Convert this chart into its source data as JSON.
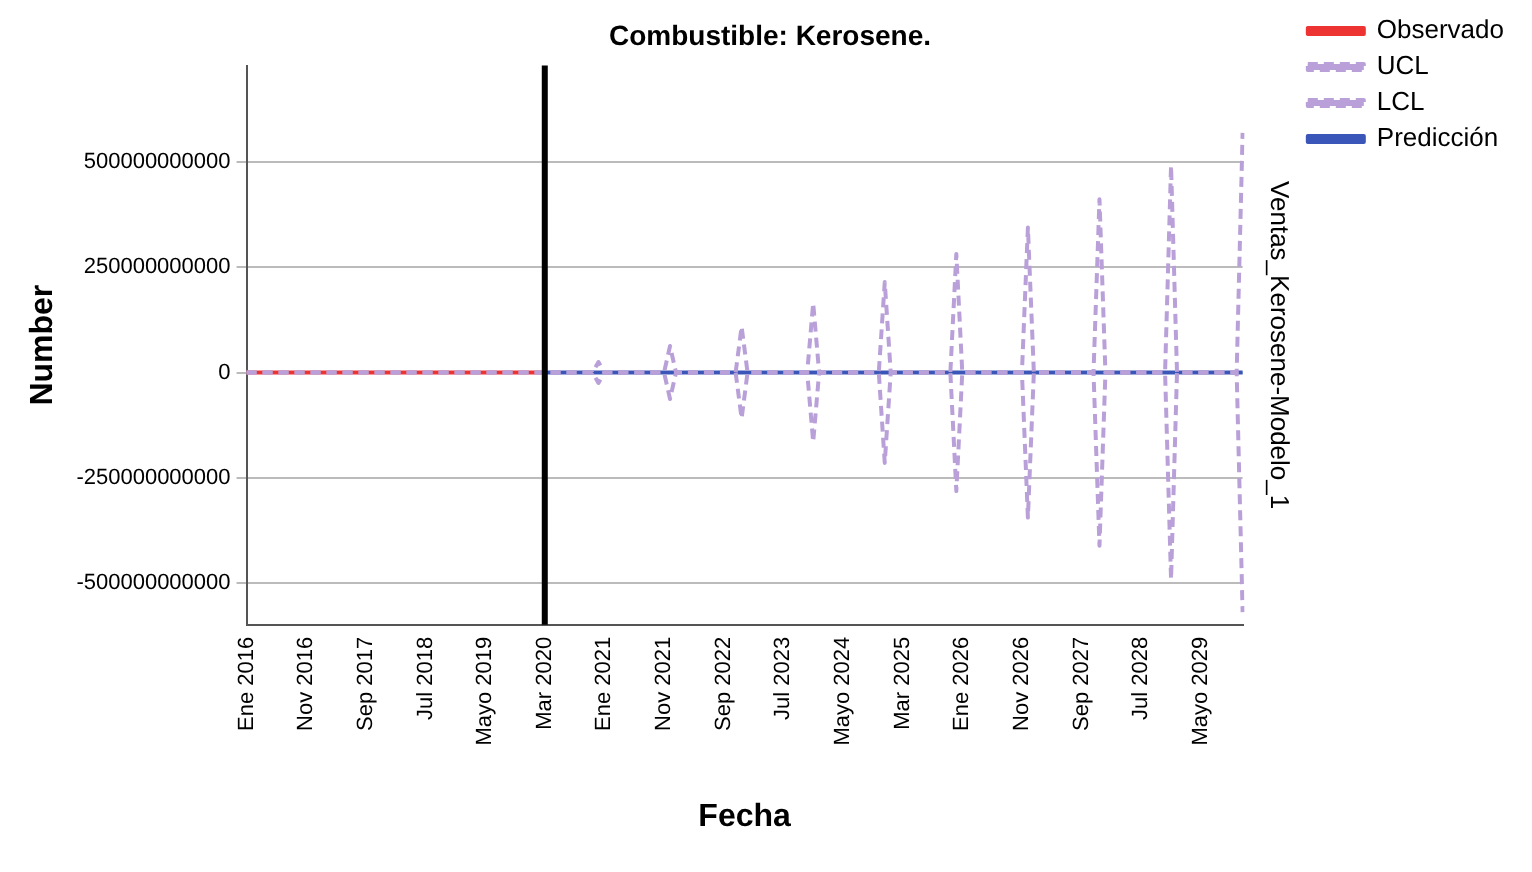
{
  "chart_data": {
    "type": "line",
    "title": "Combustible: Kerosene.",
    "xlabel": "Fecha",
    "ylabel": "Number",
    "annotations": [
      "Ventas_Kerosene-Modelo_1"
    ],
    "categories": [
      "Ene 2016",
      null,
      null,
      null,
      null,
      null,
      null,
      null,
      null,
      null,
      "Nov 2016",
      null,
      null,
      null,
      null,
      null,
      null,
      null,
      null,
      null,
      "Sep 2017",
      null,
      null,
      null,
      null,
      null,
      null,
      null,
      null,
      null,
      "Jul 2018",
      null,
      null,
      null,
      null,
      null,
      null,
      null,
      null,
      null,
      "Mayo 2019",
      null,
      null,
      null,
      null,
      null,
      null,
      null,
      null,
      null,
      "Mar 2020",
      null,
      null,
      null,
      null,
      null,
      null,
      null,
      null,
      null,
      "Ene 2021",
      null,
      null,
      null,
      null,
      null,
      null,
      null,
      null,
      null,
      "Nov 2021",
      null,
      null,
      null,
      null,
      null,
      null,
      null,
      null,
      null,
      "Sep 2022",
      null,
      null,
      null,
      null,
      null,
      null,
      null,
      null,
      null,
      "Jul 2023",
      null,
      null,
      null,
      null,
      null,
      null,
      null,
      null,
      null,
      "Mayo 2024",
      null,
      null,
      null,
      null,
      null,
      null,
      null,
      null,
      null,
      "Mar 2025",
      null,
      null,
      null,
      null,
      null,
      null,
      null,
      null,
      null,
      "Ene 2026",
      null,
      null,
      null,
      null,
      null,
      null,
      null,
      null,
      null,
      "Nov 2026",
      null,
      null,
      null,
      null,
      null,
      null,
      null,
      null,
      null,
      "Sep 2027",
      null,
      null,
      null,
      null,
      null,
      null,
      null,
      null,
      null,
      "Jul 2028",
      null,
      null,
      null,
      null,
      null,
      null,
      null,
      null,
      null,
      "Mayo 2029",
      null,
      null,
      null,
      null,
      null,
      null,
      null
    ],
    "series": [
      {
        "name": "Observado",
        "color": "#ee3333",
        "line_style": "solid",
        "values": [
          0,
          0,
          0,
          0,
          0,
          0,
          0,
          0,
          0,
          0,
          0,
          0,
          0,
          0,
          0,
          0,
          0,
          0,
          0,
          0,
          0,
          0,
          0,
          0,
          0,
          0,
          0,
          0,
          0,
          0,
          0,
          0,
          0,
          0,
          0,
          0,
          0,
          0,
          0,
          0,
          0,
          0,
          0,
          0,
          0,
          0,
          0,
          0,
          0,
          0,
          0,
          null,
          null,
          null,
          null,
          null,
          null,
          null,
          null,
          null,
          null,
          null,
          null,
          null,
          null,
          null,
          null,
          null,
          null,
          null,
          null,
          null,
          null,
          null,
          null,
          null,
          null,
          null,
          null,
          null,
          null,
          null,
          null,
          null,
          null,
          null,
          null,
          null,
          null,
          null,
          null,
          null,
          null,
          null,
          null,
          null,
          null,
          null,
          null,
          null,
          null,
          null,
          null,
          null,
          null,
          null,
          null,
          null,
          null,
          null,
          null,
          null,
          null,
          null,
          null,
          null,
          null,
          null,
          null,
          null,
          null,
          null,
          null,
          null,
          null,
          null,
          null,
          null,
          null,
          null,
          null,
          null,
          null,
          null,
          null,
          null,
          null,
          null,
          null,
          null,
          null,
          null,
          null,
          null,
          null,
          null,
          null,
          null,
          null,
          null,
          null,
          null,
          null,
          null,
          null,
          null,
          null,
          null,
          null,
          null,
          null,
          null,
          null,
          null,
          null,
          null,
          null,
          null
        ]
      },
      {
        "name": "UCL",
        "color": "#b9a0d8",
        "line_style": "dashed",
        "values": [
          0,
          0,
          0,
          0,
          0,
          0,
          0,
          0,
          0,
          0,
          0,
          0,
          0,
          0,
          0,
          0,
          0,
          0,
          0,
          0,
          0,
          0,
          0,
          0,
          0,
          0,
          0,
          0,
          0,
          0,
          0,
          0,
          0,
          0,
          0,
          0,
          0,
          0,
          0,
          0,
          0,
          0,
          0,
          0,
          0,
          0,
          0,
          0,
          0,
          0,
          0,
          0,
          0,
          0,
          0,
          0,
          0,
          0,
          0,
          25000000000,
          0,
          0,
          0,
          0,
          0,
          0,
          0,
          0,
          0,
          0,
          0,
          63000000000,
          0,
          0,
          0,
          0,
          0,
          0,
          0,
          0,
          0,
          0,
          0,
          109000000000,
          0,
          0,
          0,
          0,
          0,
          0,
          0,
          0,
          0,
          0,
          0,
          165000000000,
          0,
          0,
          0,
          0,
          0,
          0,
          0,
          0,
          0,
          0,
          0,
          215000000000,
          0,
          0,
          0,
          0,
          0,
          0,
          0,
          0,
          0,
          0,
          0,
          282000000000,
          0,
          0,
          0,
          0,
          0,
          0,
          0,
          0,
          0,
          0,
          0,
          345000000000,
          0,
          0,
          0,
          0,
          0,
          0,
          0,
          0,
          0,
          0,
          0,
          412000000000,
          0,
          0,
          0,
          0,
          0,
          0,
          0,
          0,
          0,
          0,
          0,
          492000000000,
          0,
          0,
          0,
          0,
          0,
          0,
          0,
          0,
          0,
          0,
          0,
          570000000000
        ]
      },
      {
        "name": "LCL",
        "color": "#b9a0d8",
        "line_style": "dashed",
        "values": [
          0,
          0,
          0,
          0,
          0,
          0,
          0,
          0,
          0,
          0,
          0,
          0,
          0,
          0,
          0,
          0,
          0,
          0,
          0,
          0,
          0,
          0,
          0,
          0,
          0,
          0,
          0,
          0,
          0,
          0,
          0,
          0,
          0,
          0,
          0,
          0,
          0,
          0,
          0,
          0,
          0,
          0,
          0,
          0,
          0,
          0,
          0,
          0,
          0,
          0,
          0,
          0,
          0,
          0,
          0,
          0,
          0,
          0,
          0,
          -25000000000,
          0,
          0,
          0,
          0,
          0,
          0,
          0,
          0,
          0,
          0,
          0,
          -63000000000,
          0,
          0,
          0,
          0,
          0,
          0,
          0,
          0,
          0,
          0,
          0,
          -109000000000,
          0,
          0,
          0,
          0,
          0,
          0,
          0,
          0,
          0,
          0,
          0,
          -165000000000,
          0,
          0,
          0,
          0,
          0,
          0,
          0,
          0,
          0,
          0,
          0,
          -215000000000,
          0,
          0,
          0,
          0,
          0,
          0,
          0,
          0,
          0,
          0,
          0,
          -282000000000,
          0,
          0,
          0,
          0,
          0,
          0,
          0,
          0,
          0,
          0,
          0,
          -345000000000,
          0,
          0,
          0,
          0,
          0,
          0,
          0,
          0,
          0,
          0,
          0,
          -412000000000,
          0,
          0,
          0,
          0,
          0,
          0,
          0,
          0,
          0,
          0,
          0,
          -492000000000,
          0,
          0,
          0,
          0,
          0,
          0,
          0,
          0,
          0,
          0,
          0,
          -570000000000
        ]
      },
      {
        "name": "Predicción",
        "color": "#3a56b8",
        "line_style": "solid",
        "values": [
          null,
          null,
          null,
          null,
          null,
          null,
          null,
          null,
          null,
          null,
          null,
          null,
          null,
          null,
          null,
          null,
          null,
          null,
          null,
          null,
          null,
          null,
          null,
          null,
          null,
          null,
          null,
          null,
          null,
          null,
          null,
          null,
          null,
          null,
          null,
          null,
          null,
          null,
          null,
          null,
          null,
          null,
          null,
          null,
          null,
          null,
          null,
          null,
          null,
          null,
          0,
          0,
          0,
          0,
          0,
          0,
          0,
          0,
          0,
          0,
          0,
          0,
          0,
          0,
          0,
          0,
          0,
          0,
          0,
          0,
          0,
          0,
          0,
          0,
          0,
          0,
          0,
          0,
          0,
          0,
          0,
          0,
          0,
          0,
          0,
          0,
          0,
          0,
          0,
          0,
          0,
          0,
          0,
          0,
          0,
          0,
          0,
          0,
          0,
          0,
          0,
          0,
          0,
          0,
          0,
          0,
          0,
          0,
          0,
          0,
          0,
          0,
          0,
          0,
          0,
          0,
          0,
          0,
          0,
          0,
          0,
          0,
          0,
          0,
          0,
          0,
          0,
          0,
          0,
          0,
          0,
          0,
          0,
          0,
          0,
          0,
          0,
          0,
          0,
          0,
          0,
          0,
          0,
          0,
          0,
          0,
          0,
          0,
          0,
          0,
          0,
          0,
          0,
          0,
          0,
          0,
          0,
          0,
          0,
          0,
          0,
          0,
          0,
          0,
          0,
          0,
          0,
          0
        ]
      }
    ],
    "ylim": [
      -600000000000,
      730000000000
    ],
    "yticks": [
      -500000000000,
      -250000000000,
      0,
      250000000000,
      500000000000
    ],
    "ref_lines": [
      {
        "axis": "x",
        "value": "Mar 2020",
        "color": "#000000",
        "line_style": "solid"
      }
    ],
    "grid": "y",
    "legend": "top right",
    "marker": "none"
  }
}
